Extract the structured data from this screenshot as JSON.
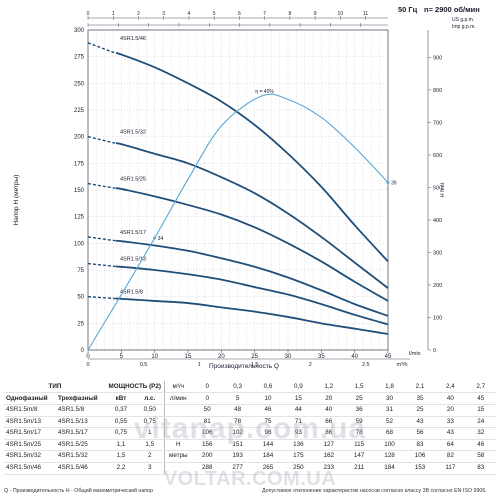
{
  "chart_data": {
    "type": "line",
    "header": {
      "freq": "50 Гц",
      "speed": "n= 2900 об/мин"
    },
    "ylabel": "Напор H (метры)",
    "xlabel": "Производительность Q",
    "x_unit": "l/min",
    "y2_label": "H feet",
    "top_units": [
      "US g.p.m.",
      "Imp g.p.m."
    ],
    "ylim": [
      0,
      300
    ],
    "yticks": [
      0,
      25,
      50,
      75,
      100,
      125,
      150,
      175,
      200,
      225,
      250,
      275,
      300
    ],
    "xlim": [
      0,
      45
    ],
    "xticks": [
      0,
      5,
      10,
      15,
      20,
      25,
      30,
      35,
      40,
      45
    ],
    "m3h_ticks": [
      "0",
      "0.5",
      "1",
      "1.5",
      "2",
      "2.5",
      "m³/h"
    ],
    "top_ticks": [
      "0",
      "1",
      "2",
      "3",
      "4",
      "5",
      "6",
      "7",
      "8",
      "9",
      "10",
      "11",
      "12"
    ],
    "feet_ticks": [
      "0",
      "100",
      "200",
      "300",
      "400",
      "500",
      "600",
      "700",
      "800",
      "900"
    ],
    "grid": true,
    "efficiency_label": "η = 40%",
    "series": [
      {
        "name": "4SR1.5/8",
        "x": [
          0,
          5,
          10,
          15,
          20,
          25,
          30,
          35,
          40,
          45
        ],
        "y": [
          50,
          48,
          46,
          44,
          40,
          36,
          31,
          25,
          20,
          15
        ]
      },
      {
        "name": "4SR1.5/13",
        "x": [
          0,
          5,
          10,
          15,
          20,
          25,
          30,
          35,
          40,
          45
        ],
        "y": [
          81,
          78,
          75,
          71,
          66,
          59,
          52,
          43,
          33,
          24
        ]
      },
      {
        "name": "4SR1.5/17",
        "x": [
          0,
          5,
          10,
          15,
          20,
          25,
          30,
          35,
          40,
          45
        ],
        "y": [
          106,
          102,
          98,
          93,
          86,
          78,
          68,
          56,
          43,
          32
        ]
      },
      {
        "name": "4SR1.5/25",
        "x": [
          0,
          5,
          10,
          15,
          20,
          25,
          30,
          35,
          40,
          45
        ],
        "y": [
          156,
          151,
          144,
          136,
          127,
          115,
          100,
          83,
          64,
          46
        ]
      },
      {
        "name": "4SR1.5/32",
        "x": [
          0,
          5,
          10,
          15,
          20,
          25,
          30,
          35,
          40,
          45
        ],
        "y": [
          200,
          193,
          184,
          175,
          162,
          147,
          128,
          106,
          82,
          58
        ]
      },
      {
        "name": "4SR1.5/46",
        "x": [
          0,
          5,
          10,
          15,
          20,
          25,
          30,
          35,
          40,
          45
        ],
        "y": [
          288,
          277,
          265,
          250,
          233,
          211,
          184,
          153,
          117,
          83
        ]
      }
    ],
    "efficiency_curve": {
      "x": [
        0,
        5,
        10,
        15,
        20,
        26,
        30,
        35,
        40,
        45
      ],
      "y": [
        0,
        52,
        105,
        160,
        210,
        238,
        235,
        218,
        190,
        157
      ],
      "point_labels": [
        {
          "x": 10,
          "y": 105,
          "text": "34"
        },
        {
          "x": 45,
          "y": 157,
          "text": "39"
        }
      ]
    }
  },
  "table": {
    "headers": {
      "type": "ТИП",
      "power": "МОЩНОСТЬ (P2)",
      "single_phase": "Однофазный",
      "three_phase": "Трехфазный",
      "kw": "кВт",
      "hp": "л.с.",
      "q": "Q",
      "h": "H",
      "m3h": "м³/ч",
      "lmin": "л/мин",
      "meters": "метры"
    },
    "flow_m3h": [
      "0",
      "0,3",
      "0,6",
      "0,9",
      "1,2",
      "1,5",
      "1,8",
      "2,1",
      "2,4",
      "2,7"
    ],
    "flow_lmin": [
      "0",
      "5",
      "10",
      "15",
      "20",
      "25",
      "30",
      "35",
      "40",
      "45"
    ],
    "rows": [
      {
        "single": "4SR1.5m/8",
        "three": "4SR1.5/8",
        "kw": "0,37",
        "hp": "0,50",
        "h": [
          "50",
          "48",
          "46",
          "44",
          "40",
          "36",
          "31",
          "25",
          "20",
          "15"
        ]
      },
      {
        "single": "4SR1.5m/13",
        "three": "4SR1.5/13",
        "kw": "0,55",
        "hp": "0,75",
        "h": [
          "81",
          "78",
          "75",
          "71",
          "66",
          "59",
          "52",
          "43",
          "33",
          "24"
        ]
      },
      {
        "single": "4SR1.5m/17",
        "three": "4SR1.5/17",
        "kw": "0,75",
        "hp": "1",
        "h": [
          "106",
          "102",
          "98",
          "93",
          "86",
          "78",
          "68",
          "56",
          "43",
          "32"
        ]
      },
      {
        "single": "4SR1.5m/25",
        "three": "4SR1.5/25",
        "kw": "1,1",
        "hp": "1,5",
        "h": [
          "156",
          "151",
          "144",
          "136",
          "127",
          "115",
          "100",
          "83",
          "64",
          "46"
        ]
      },
      {
        "single": "4SR1.5m/32",
        "three": "4SR1.5/32",
        "kw": "1,5",
        "hp": "2",
        "h": [
          "200",
          "193",
          "184",
          "175",
          "162",
          "147",
          "128",
          "106",
          "82",
          "58"
        ]
      },
      {
        "single": "4SR1.5m/46",
        "three": "4SR1.5/46",
        "kw": "2,2",
        "hp": "3",
        "h": [
          "288",
          "277",
          "265",
          "250",
          "233",
          "211",
          "184",
          "153",
          "117",
          "83"
        ]
      }
    ]
  },
  "footnote": {
    "left": "Q - Производительность  H - Общий манометрический напор",
    "right": "Допустимое отклонение характеристик насосов согласно классу 3B согласно EN ISO 9906."
  },
  "watermarks": [
    "vitanap.com.ua",
    "VOLTAR.COM.UA"
  ],
  "colors": {
    "curve": "#1f4e79",
    "efficiency": "#5aa7d6",
    "grid": "#c9ccd6",
    "text": "#1a1a2e"
  }
}
